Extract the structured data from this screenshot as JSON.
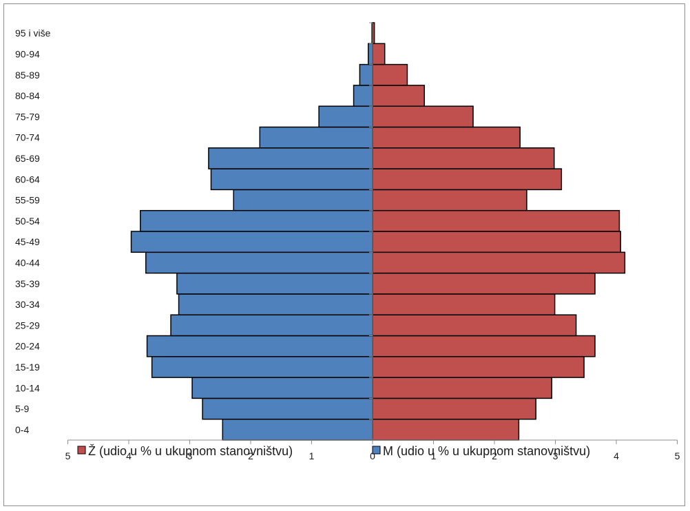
{
  "chart_data": {
    "type": "bar",
    "orientation": "horizontal",
    "categories": [
      "0-4",
      "5-9",
      "10-14",
      "15-19",
      "20-24",
      "25-29",
      "30-34",
      "35-39",
      "40-44",
      "45-49",
      "50-54",
      "55-59",
      "60-64",
      "65-69",
      "70-74",
      "75-79",
      "80-84",
      "85-89",
      "90-94",
      "95 i više"
    ],
    "series": [
      {
        "name": "Ž (udio u % u ukupnom stanovništvu)",
        "color": "#c0504d",
        "direction": "right",
        "values": [
          2.4,
          2.68,
          2.94,
          3.47,
          3.65,
          3.34,
          2.99,
          3.65,
          4.14,
          4.07,
          4.05,
          2.53,
          3.1,
          2.98,
          2.42,
          1.65,
          0.85,
          0.57,
          0.2,
          0.03
        ]
      },
      {
        "name": "M (udio u % u ukupnom stanovništvu)",
        "color": "#4f81bd",
        "direction": "left",
        "values": [
          2.46,
          2.79,
          2.96,
          3.62,
          3.7,
          3.31,
          3.18,
          3.21,
          3.72,
          3.96,
          3.81,
          2.28,
          2.65,
          2.69,
          1.85,
          0.88,
          0.31,
          0.21,
          0.07,
          0.01
        ]
      }
    ],
    "xticks": [
      "5",
      "4",
      "3",
      "2",
      "1",
      "0",
      "1",
      "2",
      "3",
      "4",
      "5"
    ],
    "xlim": [
      -5,
      5
    ],
    "grid": false,
    "legend_position": "bottom"
  }
}
